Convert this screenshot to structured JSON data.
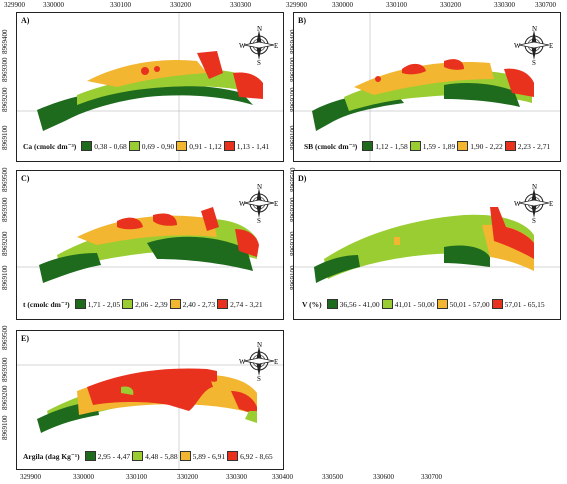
{
  "axes": {
    "x_ticks": [
      "329900",
      "330000",
      "330100",
      "330200",
      "330300",
      "330400",
      "330500",
      "330600",
      "330700"
    ],
    "y_ticks": [
      "8969100",
      "8969200",
      "8969300",
      "8969400",
      "8969500"
    ]
  },
  "compass": {
    "n": "N",
    "s": "S",
    "e": "E",
    "w": "W"
  },
  "colors": {
    "class1": "#1e6b1e",
    "class2": "#9acd32",
    "class3": "#f2b630",
    "class4": "#e8321e"
  },
  "panels": [
    {
      "letter": "A)",
      "legend_title": "Ca (cmol",
      "legend_unit": "c dm⁻³)",
      "classes": [
        "0,38 - 0,68",
        "0,69 - 0,90",
        "0,91 - 1,12",
        "1,13 - 1,41"
      ]
    },
    {
      "letter": "B)",
      "legend_title": "SB (cmol",
      "legend_unit": "c dm⁻³)",
      "classes": [
        "1,12 - 1,58",
        "1,59 - 1,89",
        "1,90 - 2,22",
        "2,23 - 2,71"
      ]
    },
    {
      "letter": "C)",
      "legend_title": "t (cmol",
      "legend_unit": "c dm⁻³)",
      "classes": [
        "1,71 - 2,05",
        "2,06 - 2,39",
        "2,40 - 2,73",
        "2,74 - 3,21"
      ]
    },
    {
      "letter": "D)",
      "legend_title": "V (%)",
      "legend_unit": "",
      "classes": [
        "36,56 - 41,00",
        "41,01 - 50,00",
        "50,01 - 57,00",
        "57,01 - 65,15"
      ]
    },
    {
      "letter": "E)",
      "legend_title": "Argila (dag Kg",
      "legend_unit": "⁻¹)",
      "classes": [
        "2,95 - 4,47",
        "4,48 - 5,88",
        "5,89 - 6,91",
        "6,92 - 8,65"
      ]
    }
  ]
}
